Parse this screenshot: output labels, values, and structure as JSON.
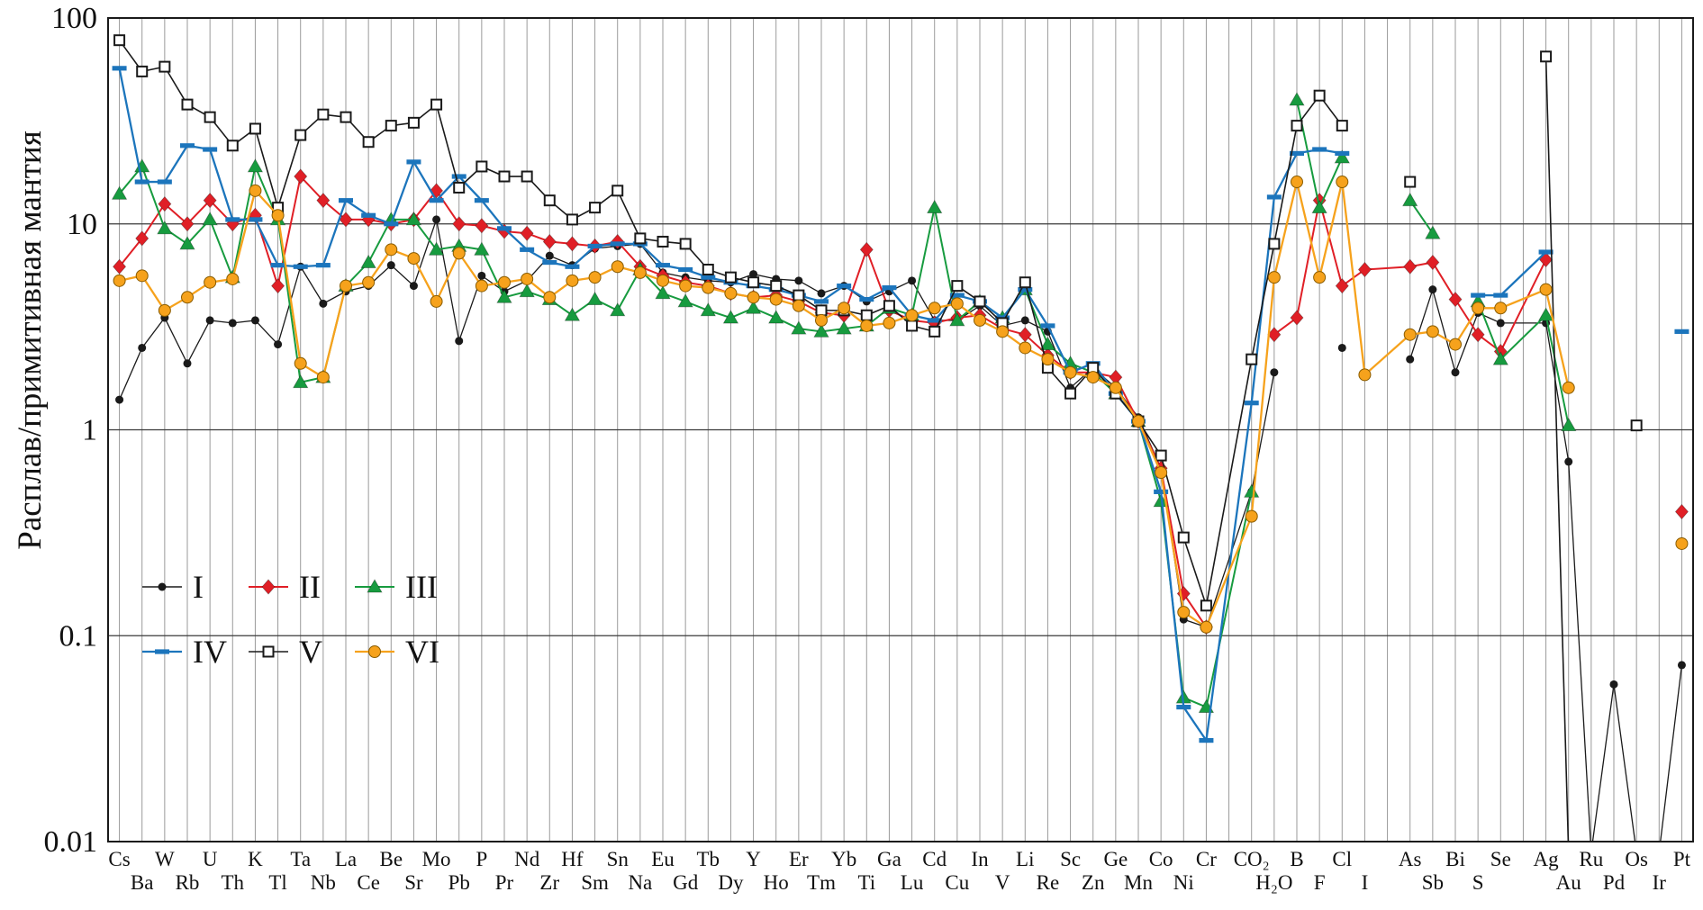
{
  "chart_data": {
    "type": "line",
    "scale": "log-y",
    "title": "",
    "xlabel": "",
    "ylabel": "Расплав/примитивная мантия",
    "ylim": [
      0.01,
      100
    ],
    "yticks": [
      100,
      10,
      1,
      0.1,
      0.01
    ],
    "grid": "vertical-per-category-plus-decade-lines",
    "legend_position": "inside-bottom-left",
    "categories": [
      {
        "l": "Cs",
        "r": 1
      },
      {
        "l": "Ba",
        "r": 2
      },
      {
        "l": "W",
        "r": 1
      },
      {
        "l": "Rb",
        "r": 2
      },
      {
        "l": "U",
        "r": 1
      },
      {
        "l": "Th",
        "r": 2
      },
      {
        "l": "K",
        "r": 1
      },
      {
        "l": "Tl",
        "r": 2
      },
      {
        "l": "Ta",
        "r": 1
      },
      {
        "l": "Nb",
        "r": 2
      },
      {
        "l": "La",
        "r": 1
      },
      {
        "l": "Ce",
        "r": 2
      },
      {
        "l": "Be",
        "r": 1
      },
      {
        "l": "Sr",
        "r": 2
      },
      {
        "l": "Mo",
        "r": 1
      },
      {
        "l": "Pb",
        "r": 2
      },
      {
        "l": "P",
        "r": 1
      },
      {
        "l": "Pr",
        "r": 2
      },
      {
        "l": "Nd",
        "r": 1
      },
      {
        "l": "Zr",
        "r": 2
      },
      {
        "l": "Hf",
        "r": 1
      },
      {
        "l": "Sm",
        "r": 2
      },
      {
        "l": "Sn",
        "r": 1
      },
      {
        "l": "Na",
        "r": 2
      },
      {
        "l": "Eu",
        "r": 1
      },
      {
        "l": "Gd",
        "r": 2
      },
      {
        "l": "Tb",
        "r": 1
      },
      {
        "l": "Dy",
        "r": 2
      },
      {
        "l": "Y",
        "r": 1
      },
      {
        "l": "Ho",
        "r": 2
      },
      {
        "l": "Er",
        "r": 1
      },
      {
        "l": "Tm",
        "r": 2
      },
      {
        "l": "Yb",
        "r": 1
      },
      {
        "l": "Ti",
        "r": 2
      },
      {
        "l": "Ga",
        "r": 1
      },
      {
        "l": "Lu",
        "r": 2
      },
      {
        "l": "Cd",
        "r": 1
      },
      {
        "l": "Cu",
        "r": 2
      },
      {
        "l": "In",
        "r": 1
      },
      {
        "l": "V",
        "r": 2
      },
      {
        "l": "Li",
        "r": 1
      },
      {
        "l": "Re",
        "r": 2
      },
      {
        "l": "Sc",
        "r": 1
      },
      {
        "l": "Zn",
        "r": 2
      },
      {
        "l": "Ge",
        "r": 1
      },
      {
        "l": "Mn",
        "r": 2
      },
      {
        "l": "Co",
        "r": 1
      },
      {
        "l": "Ni",
        "r": 2
      },
      {
        "l": "Cr",
        "r": 1
      },
      {
        "l": "CO₂",
        "r": 1,
        "g": true
      },
      {
        "l": "H₂O",
        "r": 2
      },
      {
        "l": "B",
        "r": 1
      },
      {
        "l": "F",
        "r": 2
      },
      {
        "l": "Cl",
        "r": 1
      },
      {
        "l": "I",
        "r": 2
      },
      {
        "l": "As",
        "r": 1,
        "g": true
      },
      {
        "l": "Sb",
        "r": 2
      },
      {
        "l": "Bi",
        "r": 1
      },
      {
        "l": "S",
        "r": 2
      },
      {
        "l": "Se",
        "r": 1
      },
      {
        "l": "Ag",
        "r": 1,
        "g": true
      },
      {
        "l": "Au",
        "r": 2
      },
      {
        "l": "Ru",
        "r": 1
      },
      {
        "l": "Pd",
        "r": 2
      },
      {
        "l": "Os",
        "r": 1
      },
      {
        "l": "Ir",
        "r": 2
      },
      {
        "l": "Pt",
        "r": 1
      }
    ],
    "series": [
      {
        "name": "I",
        "marker": "dot",
        "color": "#1a1a1a",
        "lw": 1.3,
        "values": [
          1.4,
          2.5,
          3.5,
          2.1,
          3.4,
          3.3,
          3.4,
          2.6,
          6.2,
          4.1,
          4.7,
          5.0,
          6.3,
          5.0,
          10.5,
          2.7,
          5.6,
          4.7,
          5.3,
          7.0,
          6.3,
          7.6,
          7.8,
          8.0,
          5.8,
          5.5,
          5.3,
          5.2,
          5.7,
          5.4,
          5.3,
          4.6,
          5.0,
          4.2,
          4.7,
          5.3,
          3.4,
          3.4,
          4.0,
          3.2,
          3.4,
          3.0,
          1.6,
          2.0,
          1.6,
          1.15,
          0.65,
          0.12,
          0.11,
          0.5,
          1.9,
          null,
          null,
          2.5,
          null,
          2.2,
          4.8,
          1.9,
          3.7,
          3.3,
          3.3,
          0.7,
          0.006,
          0.058,
          0.006,
          0.006,
          0.072
        ]
      },
      {
        "name": "II",
        "marker": "diamond",
        "color": "#e01f26",
        "lw": 2,
        "values": [
          6.2,
          8.5,
          12.5,
          10,
          13,
          10,
          11,
          5.0,
          17,
          13,
          10.5,
          10.5,
          10,
          10.5,
          14.5,
          10,
          9.8,
          9.2,
          9.0,
          8.2,
          8.0,
          7.8,
          8.2,
          6.2,
          5.6,
          5.2,
          5.0,
          4.6,
          4.4,
          4.5,
          4.2,
          3.7,
          3.6,
          7.5,
          3.8,
          3.4,
          3.3,
          3.5,
          3.6,
          3.1,
          2.9,
          2.3,
          1.9,
          1.9,
          1.8,
          1.1,
          0.65,
          0.16,
          0.11,
          null,
          2.9,
          3.5,
          13,
          5.0,
          6.0,
          6.2,
          6.5,
          4.3,
          2.9,
          2.4,
          6.7,
          null,
          null,
          null,
          null,
          null,
          0.4
        ]
      },
      {
        "name": "III",
        "marker": "triangle",
        "color": "#179b3f",
        "lw": 2,
        "values": [
          14,
          19,
          9.5,
          8.0,
          10.5,
          5.5,
          19,
          10.5,
          1.7,
          1.8,
          5.0,
          6.5,
          10.5,
          10.5,
          7.5,
          7.8,
          7.5,
          4.4,
          4.7,
          4.3,
          3.6,
          4.3,
          3.8,
          6.0,
          4.6,
          4.2,
          3.8,
          3.5,
          3.9,
          3.5,
          3.1,
          3.0,
          3.1,
          3.2,
          3.9,
          3.6,
          12,
          3.4,
          4.2,
          3.5,
          4.8,
          2.6,
          2.1,
          1.9,
          1.5,
          1.1,
          0.45,
          0.05,
          0.045,
          0.5,
          null,
          40,
          12,
          21,
          null,
          13,
          9.0,
          null,
          4.2,
          2.2,
          3.6,
          1.05,
          null,
          null,
          null,
          null,
          null
        ]
      },
      {
        "name": "IV",
        "marker": "dash",
        "color": "#1c75bc",
        "lw": 2.3,
        "values": [
          57,
          16,
          16,
          24,
          23,
          10.5,
          10.5,
          6.3,
          6.2,
          6.3,
          13,
          11,
          10,
          20,
          13,
          17,
          13,
          9.5,
          7.5,
          6.5,
          6.2,
          7.8,
          8.0,
          8.0,
          6.3,
          6.0,
          5.5,
          5.2,
          5.0,
          4.8,
          4.5,
          4.2,
          5.0,
          4.3,
          4.9,
          3.6,
          3.4,
          4.5,
          4.2,
          3.5,
          4.8,
          3.2,
          1.9,
          2.1,
          1.5,
          1.1,
          0.5,
          0.045,
          0.031,
          1.35,
          13.5,
          22,
          23,
          22,
          null,
          null,
          null,
          null,
          4.5,
          4.5,
          7.3,
          null,
          null,
          null,
          null,
          null,
          3.0
        ]
      },
      {
        "name": "V",
        "marker": "square-open",
        "color": "#1a1a1a",
        "lw": 1.6,
        "values": [
          78,
          55,
          58,
          38,
          33,
          24,
          29,
          12,
          27,
          34,
          33,
          25,
          30,
          31,
          38,
          15,
          19,
          17,
          17,
          13,
          10.5,
          12,
          14.5,
          8.5,
          8.2,
          8.0,
          6.0,
          5.5,
          5.2,
          5.0,
          4.5,
          3.8,
          3.8,
          3.6,
          4.0,
          3.2,
          3.0,
          5.0,
          4.2,
          3.3,
          5.2,
          2.0,
          1.5,
          2.0,
          1.5,
          1.1,
          0.75,
          0.3,
          0.14,
          2.2,
          8.0,
          30,
          42,
          30,
          null,
          16,
          null,
          null,
          null,
          null,
          65,
          0.006,
          null,
          null,
          1.05,
          null,
          null
        ]
      },
      {
        "name": "VI",
        "marker": "circle",
        "color": "#f6a21c",
        "lw": 2.3,
        "values": [
          5.3,
          5.6,
          3.8,
          4.4,
          5.2,
          5.4,
          14.5,
          11,
          2.1,
          1.8,
          5.0,
          5.2,
          7.5,
          6.8,
          4.2,
          7.2,
          5.0,
          5.2,
          5.4,
          4.4,
          5.3,
          5.5,
          6.2,
          5.8,
          5.3,
          5.0,
          4.9,
          4.6,
          4.4,
          4.3,
          4.0,
          3.4,
          3.9,
          3.2,
          3.3,
          3.6,
          3.9,
          4.1,
          3.4,
          3.0,
          2.5,
          2.2,
          1.9,
          1.8,
          1.6,
          1.1,
          0.62,
          0.13,
          0.11,
          0.38,
          5.5,
          16,
          5.5,
          16,
          1.85,
          2.9,
          3.0,
          2.6,
          3.9,
          3.9,
          4.8,
          1.6,
          null,
          null,
          null,
          null,
          0.28
        ]
      }
    ],
    "legend": {
      "rows": [
        [
          "I",
          "II",
          "III"
        ],
        [
          "IV",
          "V",
          "VI"
        ]
      ]
    }
  }
}
